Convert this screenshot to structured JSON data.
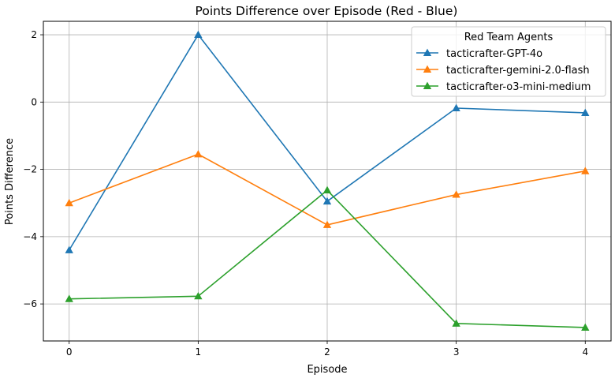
{
  "chart_data": {
    "type": "line",
    "title": "Points Difference over Episode (Red - Blue)",
    "xlabel": "Episode",
    "ylabel": "Points Difference",
    "x": [
      0,
      1,
      2,
      3,
      4
    ],
    "xticks": [
      0,
      1,
      2,
      3,
      4
    ],
    "yticks": [
      -6,
      -4,
      -2,
      0,
      2
    ],
    "xlim": [
      -0.2,
      4.2
    ],
    "ylim": [
      -7.1,
      2.4
    ],
    "grid": true,
    "legend": {
      "title": "Red Team Agents",
      "placement": "top-right"
    },
    "series": [
      {
        "name": "tacticrafter-GPT-4o",
        "color": "#1f77b4",
        "marker": "triangle-up",
        "values": [
          -4.4,
          2.0,
          -2.95,
          -0.18,
          -0.32
        ]
      },
      {
        "name": "tacticrafter-gemini-2.0-flash",
        "color": "#ff7f0e",
        "marker": "triangle-up",
        "values": [
          -3.0,
          -1.55,
          -3.65,
          -2.75,
          -2.05
        ]
      },
      {
        "name": "tacticrafter-o3-mini-medium",
        "color": "#2ca02c",
        "marker": "triangle-up",
        "values": [
          -5.85,
          -5.77,
          -2.62,
          -6.58,
          -6.7
        ]
      }
    ]
  }
}
